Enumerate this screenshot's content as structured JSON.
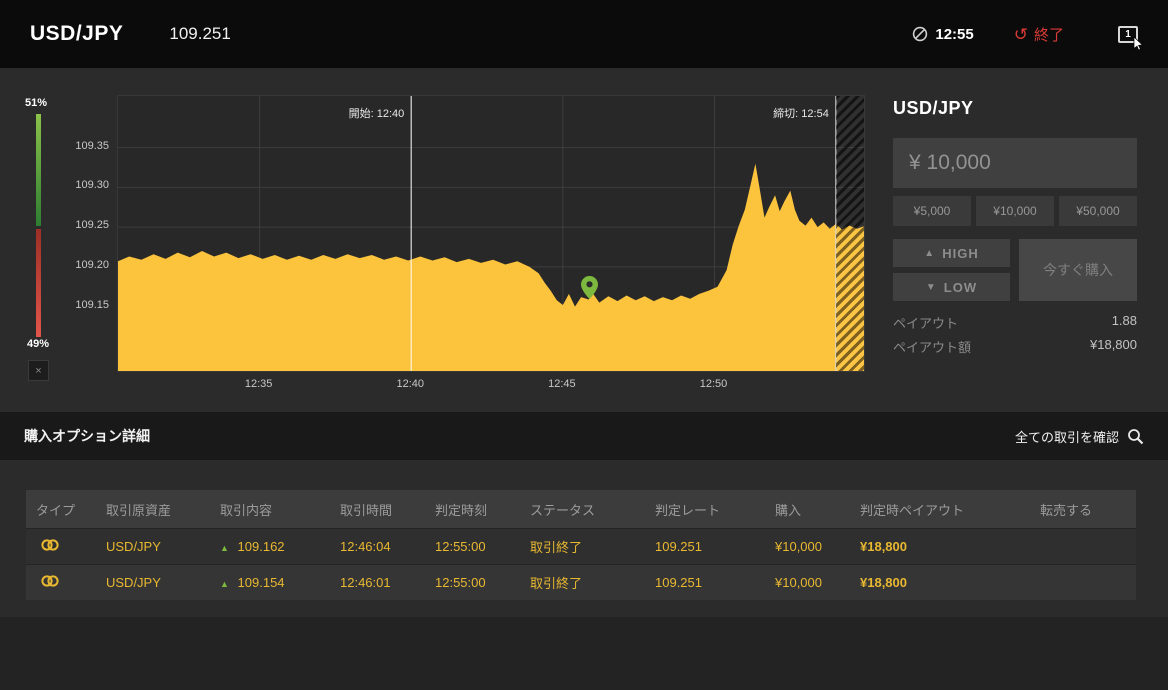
{
  "topbar": {
    "pair": "USD/JPY",
    "price": "109.251",
    "clock_time": "12:55",
    "end_label": "終了",
    "window_count": "1"
  },
  "icons": {
    "end": "↺",
    "up_arrow": "▲",
    "high_arrow": "▲",
    "low_arrow": "▼"
  },
  "gauge": {
    "high_pct": "51%",
    "low_pct": "49%",
    "high_value": 51,
    "low_value": 49,
    "close_label": "×"
  },
  "chart_data": {
    "type": "area",
    "pair": "USD/JPY",
    "area_color": "#fcc33d",
    "grid_color": "#3d3d3d",
    "y_ticks": [
      "109.35",
      "109.30",
      "109.25",
      "109.20",
      "109.15"
    ],
    "y_range": [
      109.069,
      109.415
    ],
    "x_range": [
      0.33,
      24.93
    ],
    "x_ticks": [
      {
        "t": 5,
        "label": "12:35"
      },
      {
        "t": 10,
        "label": "12:40"
      },
      {
        "t": 15,
        "label": "12:45"
      },
      {
        "t": 20,
        "label": "12:50"
      }
    ],
    "start_line": {
      "t": 10,
      "label": "開始: 12:40"
    },
    "deadline_line": {
      "t": 24,
      "label": "締切: 12:54"
    },
    "marker": {
      "t": 15.85,
      "v": 109.159
    },
    "points": [
      [
        0.33,
        109.207
      ],
      [
        0.7,
        109.213
      ],
      [
        1.1,
        109.209
      ],
      [
        1.5,
        109.216
      ],
      [
        1.9,
        109.21
      ],
      [
        2.3,
        109.218
      ],
      [
        2.7,
        109.212
      ],
      [
        3.1,
        109.22
      ],
      [
        3.5,
        109.213
      ],
      [
        3.9,
        109.218
      ],
      [
        4.3,
        109.211
      ],
      [
        4.7,
        109.216
      ],
      [
        5.1,
        109.21
      ],
      [
        5.5,
        109.215
      ],
      [
        5.9,
        109.209
      ],
      [
        6.3,
        109.214
      ],
      [
        6.7,
        109.209
      ],
      [
        7.1,
        109.215
      ],
      [
        7.5,
        109.21
      ],
      [
        7.9,
        109.216
      ],
      [
        8.3,
        109.211
      ],
      [
        8.7,
        109.215
      ],
      [
        9.1,
        109.209
      ],
      [
        9.5,
        109.213
      ],
      [
        9.9,
        109.208
      ],
      [
        10.3,
        109.213
      ],
      [
        10.7,
        109.208
      ],
      [
        11.1,
        109.212
      ],
      [
        11.5,
        109.206
      ],
      [
        11.9,
        109.21
      ],
      [
        12.3,
        109.205
      ],
      [
        12.7,
        109.209
      ],
      [
        13.1,
        109.203
      ],
      [
        13.5,
        109.207
      ],
      [
        13.9,
        109.2
      ],
      [
        14.2,
        109.192
      ],
      [
        14.4,
        109.18
      ],
      [
        14.6,
        109.17
      ],
      [
        14.8,
        109.158
      ],
      [
        15.0,
        109.152
      ],
      [
        15.2,
        109.166
      ],
      [
        15.4,
        109.15
      ],
      [
        15.6,
        109.162
      ],
      [
        15.85,
        109.159
      ],
      [
        16.0,
        109.166
      ],
      [
        16.2,
        109.155
      ],
      [
        16.5,
        109.163
      ],
      [
        16.8,
        109.157
      ],
      [
        17.1,
        109.164
      ],
      [
        17.4,
        109.158
      ],
      [
        17.7,
        109.163
      ],
      [
        18.0,
        109.157
      ],
      [
        18.3,
        109.162
      ],
      [
        18.6,
        109.158
      ],
      [
        18.9,
        109.164
      ],
      [
        19.2,
        109.16
      ],
      [
        19.5,
        109.166
      ],
      [
        19.8,
        109.17
      ],
      [
        20.1,
        109.175
      ],
      [
        20.4,
        109.196
      ],
      [
        20.6,
        109.228
      ],
      [
        20.8,
        109.252
      ],
      [
        21.0,
        109.272
      ],
      [
        21.2,
        109.305
      ],
      [
        21.35,
        109.33
      ],
      [
        21.5,
        109.296
      ],
      [
        21.65,
        109.262
      ],
      [
        21.8,
        109.275
      ],
      [
        22.0,
        109.29
      ],
      [
        22.15,
        109.27
      ],
      [
        22.3,
        109.282
      ],
      [
        22.5,
        109.296
      ],
      [
        22.65,
        109.272
      ],
      [
        22.8,
        109.258
      ],
      [
        23.0,
        109.252
      ],
      [
        23.2,
        109.262
      ],
      [
        23.4,
        109.25
      ],
      [
        23.6,
        109.256
      ],
      [
        23.8,
        109.248
      ],
      [
        24.0,
        109.254
      ],
      [
        24.2,
        109.247
      ],
      [
        24.45,
        109.252
      ],
      [
        24.7,
        109.248
      ],
      [
        24.93,
        109.251
      ]
    ]
  },
  "panel": {
    "title": "USD/JPY",
    "amount_value": "¥ 10,000",
    "amount_presets": [
      "¥5,000",
      "¥10,000",
      "¥50,000"
    ],
    "high_label": "HIGH",
    "low_label": "LOW",
    "buy_label": "今すぐ購入",
    "payout_label": "ペイアウト",
    "payout_rate": "1.88",
    "payout_amount_label": "ペイアウト額",
    "payout_amount": "¥18,800"
  },
  "details_bar": {
    "title": "購入オプション詳細",
    "view_all_label": "全ての取引を確認"
  },
  "table": {
    "headers": [
      "タイプ",
      "取引原資産",
      "取引内容",
      "取引時間",
      "判定時刻",
      "ステータス",
      "判定レート",
      "購入",
      "判定時ペイアウト",
      "転売する"
    ],
    "rows": [
      {
        "asset": "USD/JPY",
        "entry_rate": "109.162",
        "trade_time": "12:46:04",
        "judge_time": "12:55:00",
        "status": "取引終了",
        "judge_rate": "109.251",
        "purchase": "¥10,000",
        "payout": "¥18,800",
        "resell": ""
      },
      {
        "asset": "USD/JPY",
        "entry_rate": "109.154",
        "trade_time": "12:46:01",
        "judge_time": "12:55:00",
        "status": "取引終了",
        "judge_rate": "109.251",
        "purchase": "¥10,000",
        "payout": "¥18,800",
        "resell": ""
      }
    ]
  }
}
